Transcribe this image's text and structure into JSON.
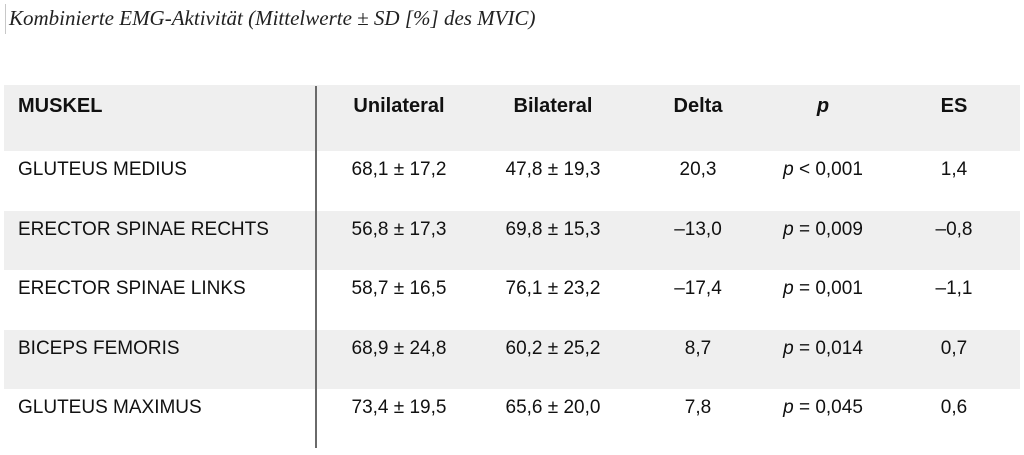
{
  "title": "Kombinierte EMG-Aktivität (Mittelwerte ± SD [%] des MVIC)",
  "table": {
    "headers": [
      "MUSKEL",
      "Unilateral",
      "Bilateral",
      "Delta",
      "p",
      "ES"
    ],
    "rows": [
      {
        "muskel": "GLUTEUS MEDIUS",
        "unilateral": "68,1 ± 17,2",
        "bilateral": "47,8 ± 19,3",
        "delta": "20,3",
        "p_sym": "p",
        "p_val": " < 0,001",
        "es": "1,4"
      },
      {
        "muskel": "ERECTOR SPINAE RECHTS",
        "unilateral": "56,8 ± 17,3",
        "bilateral": "69,8 ± 15,3",
        "delta": "–13,0",
        "p_sym": "p",
        "p_val": " = 0,009",
        "es": "–0,8"
      },
      {
        "muskel": "ERECTOR SPINAE LINKS",
        "unilateral": "58,7 ± 16,5",
        "bilateral": "76,1 ± 23,2",
        "delta": "–17,4",
        "p_sym": "p",
        "p_val": " = 0,001",
        "es": "–1,1"
      },
      {
        "muskel": "BICEPS FEMORIS",
        "unilateral": "68,9 ± 24,8",
        "bilateral": "60,2 ± 25,2",
        "delta": "8,7",
        "p_sym": "p",
        "p_val": " = 0,014",
        "es": "0,7"
      },
      {
        "muskel": "GLUTEUS MAXIMUS",
        "unilateral": "73,4 ± 19,5",
        "bilateral": "65,6 ± 20,0",
        "delta": "7,8",
        "p_sym": "p",
        "p_val": " = 0,045",
        "es": "0,6"
      }
    ]
  }
}
